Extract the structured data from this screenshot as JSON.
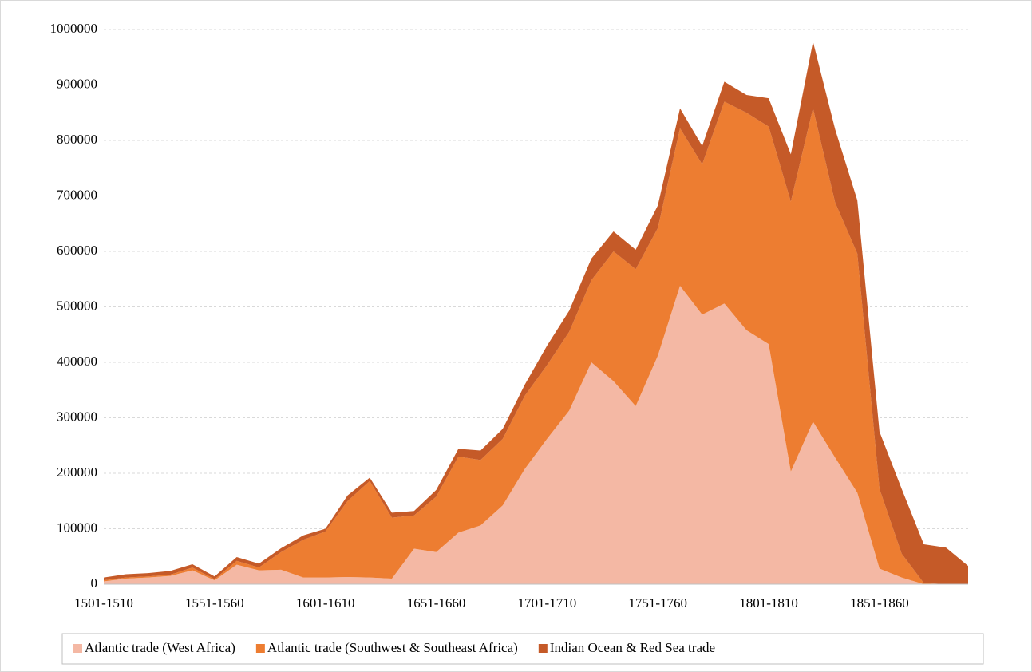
{
  "chart_data": {
    "type": "stacked_area",
    "categories": [
      "1501-1510",
      null,
      null,
      null,
      null,
      "1551-1560",
      null,
      null,
      null,
      null,
      "1601-1610",
      null,
      null,
      null,
      null,
      "1651-1660",
      null,
      null,
      null,
      null,
      "1701-1710",
      null,
      null,
      null,
      null,
      "1751-1760",
      null,
      null,
      null,
      null,
      "1801-1810",
      null,
      null,
      null,
      null,
      "1851-1860",
      null,
      null,
      null,
      null
    ],
    "series": [
      {
        "name": "Atlantic trade (West Africa)",
        "color": "#f4b8a4",
        "values": [
          5000,
          10000,
          12000,
          15000,
          25000,
          7000,
          35000,
          25000,
          26000,
          12000,
          12000,
          13000,
          12000,
          10000,
          64000,
          58000,
          93000,
          106000,
          142000,
          208000,
          262000,
          313000,
          400000,
          366000,
          321000,
          412000,
          538000,
          486000,
          506000,
          458000,
          433000,
          203000,
          293000,
          228000,
          165000,
          28000,
          12000,
          0,
          0,
          0
        ]
      },
      {
        "name": "Atlantic trade (Southwest & Southeast Africa)",
        "color": "#ed7d31",
        "values": [
          2000,
          2000,
          2000,
          2000,
          5000,
          2000,
          7000,
          5000,
          32000,
          68000,
          83000,
          137000,
          174000,
          110000,
          60000,
          100000,
          137000,
          118000,
          120000,
          132000,
          133000,
          142000,
          148000,
          234000,
          247000,
          230000,
          284000,
          271000,
          364000,
          392000,
          392000,
          487000,
          565000,
          460000,
          431000,
          144000,
          43000,
          2000,
          0,
          0
        ]
      },
      {
        "name": "Indian Ocean & Red Sea trade",
        "color": "#c55a28",
        "values": [
          5000,
          6000,
          6000,
          7000,
          6000,
          5000,
          7000,
          7000,
          7000,
          8000,
          5000,
          10000,
          6000,
          9000,
          8000,
          12000,
          14000,
          17000,
          18000,
          20000,
          35000,
          38000,
          39000,
          36000,
          35000,
          41000,
          36000,
          33000,
          36000,
          32000,
          51000,
          85000,
          120000,
          132000,
          96000,
          103000,
          117000,
          70000,
          66000,
          33000
        ]
      }
    ],
    "ylim": [
      0,
      1000000
    ],
    "yticks": [
      0,
      100000,
      200000,
      300000,
      400000,
      500000,
      600000,
      700000,
      800000,
      900000,
      1000000
    ],
    "grid": true,
    "legend": "bottom"
  }
}
